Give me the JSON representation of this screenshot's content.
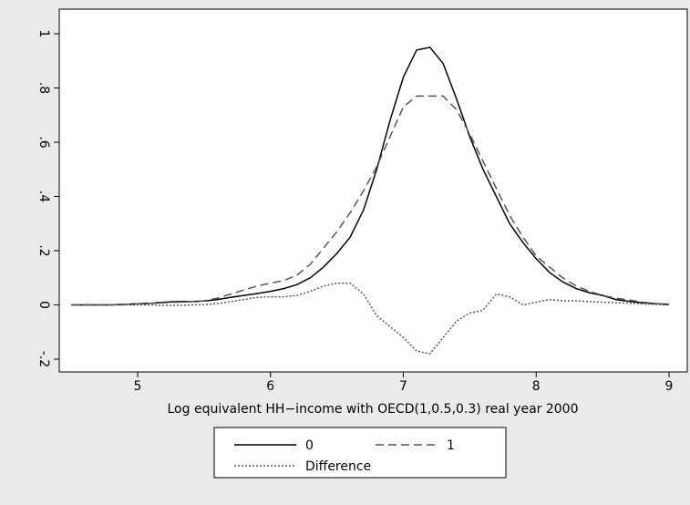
{
  "chart_data": {
    "type": "line",
    "x_label": "Log equivalent HH−income with OECD(1,0.5,0.3) real year 2000",
    "x": [
      4.5,
      4.6,
      4.7,
      4.8,
      4.9,
      5.0,
      5.1,
      5.2,
      5.3,
      5.4,
      5.5,
      5.6,
      5.7,
      5.8,
      5.9,
      6.0,
      6.1,
      6.2,
      6.3,
      6.4,
      6.5,
      6.6,
      6.7,
      6.8,
      6.9,
      7.0,
      7.1,
      7.2,
      7.3,
      7.4,
      7.5,
      7.6,
      7.7,
      7.8,
      7.9,
      8.0,
      8.1,
      8.2,
      8.3,
      8.4,
      8.5,
      8.6,
      8.7,
      8.8,
      8.9,
      9.0
    ],
    "series": [
      {
        "name": "0",
        "color": "#000000",
        "dash": "none",
        "values": [
          0,
          0,
          0,
          0,
          0.002,
          0.004,
          0.006,
          0.01,
          0.012,
          0.012,
          0.014,
          0.02,
          0.028,
          0.035,
          0.042,
          0.05,
          0.06,
          0.075,
          0.1,
          0.14,
          0.19,
          0.25,
          0.35,
          0.5,
          0.68,
          0.84,
          0.94,
          0.95,
          0.89,
          0.76,
          0.62,
          0.5,
          0.4,
          0.3,
          0.23,
          0.17,
          0.12,
          0.085,
          0.06,
          0.045,
          0.035,
          0.02,
          0.013,
          0.008,
          0.004,
          0.002
        ]
      },
      {
        "name": "1",
        "color": "#555555",
        "dash": "9,5",
        "values": [
          0,
          0,
          0,
          0,
          0.002,
          0.004,
          0.006,
          0.008,
          0.01,
          0.012,
          0.015,
          0.025,
          0.04,
          0.055,
          0.07,
          0.08,
          0.09,
          0.11,
          0.15,
          0.21,
          0.27,
          0.34,
          0.42,
          0.51,
          0.62,
          0.73,
          0.77,
          0.77,
          0.77,
          0.72,
          0.63,
          0.53,
          0.43,
          0.33,
          0.25,
          0.18,
          0.14,
          0.1,
          0.07,
          0.05,
          0.035,
          0.025,
          0.018,
          0.01,
          0.005,
          0.002
        ]
      },
      {
        "name": "Difference",
        "color": "#555555",
        "dash": "2,2",
        "values": [
          0,
          0,
          0,
          0,
          0,
          0,
          0,
          -0.002,
          -0.002,
          0,
          0.001,
          0.005,
          0.012,
          0.02,
          0.028,
          0.03,
          0.03,
          0.035,
          0.05,
          0.07,
          0.08,
          0.08,
          0.04,
          -0.04,
          -0.08,
          -0.12,
          -0.17,
          -0.18,
          -0.12,
          -0.06,
          -0.03,
          -0.02,
          0.04,
          0.03,
          0,
          0.01,
          0.02,
          0.015,
          0.015,
          0.012,
          0.01,
          0.008,
          0.006,
          0.004,
          0.002,
          0
        ]
      }
    ],
    "xlim": [
      4.5,
      9
    ],
    "xticks": [
      5,
      6,
      7,
      8,
      9
    ],
    "ylim": [
      -0.2,
      1
    ],
    "yticks": [
      {
        "value": -0.2,
        "label": "-.2"
      },
      0,
      {
        "value": 0.2,
        "label": ".2"
      },
      {
        "value": 0.4,
        "label": ".4"
      },
      {
        "value": 0.6,
        "label": ".6"
      },
      {
        "value": 0.8,
        "label": ".8"
      },
      1
    ]
  }
}
